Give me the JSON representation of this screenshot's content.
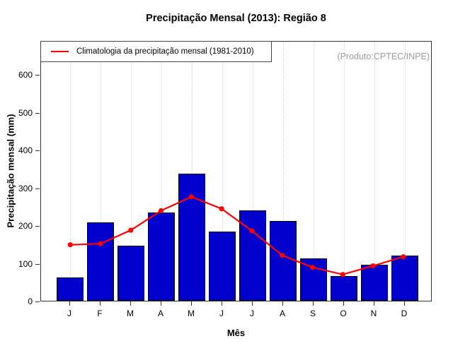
{
  "chart_data": {
    "type": "bar",
    "title": "Precipitação Mensal (2013): Região 8",
    "xlabel": "Mês",
    "ylabel": "Precipitação mensal (mm)",
    "categories": [
      "J",
      "F",
      "M",
      "A",
      "M",
      "J",
      "J",
      "A",
      "S",
      "O",
      "N",
      "D"
    ],
    "bars": {
      "color": "#0000cd",
      "values": [
        62,
        207,
        146,
        233,
        336,
        184,
        240,
        212,
        113,
        65,
        95,
        119
      ]
    },
    "line": {
      "label": "Climatologia da precipitação mensal (1981-2010)",
      "color": "#ff0000",
      "values": [
        149,
        152,
        188,
        240,
        277,
        245,
        186,
        121,
        89,
        70,
        93,
        117
      ]
    },
    "ylim": [
      0,
      690
    ],
    "yticks": [
      0,
      100,
      200,
      300,
      400,
      500,
      600
    ],
    "grid": "vertical-dotted",
    "legend_position": "top-left",
    "annotation": "(Produto:CPTEC/INPE)"
  }
}
